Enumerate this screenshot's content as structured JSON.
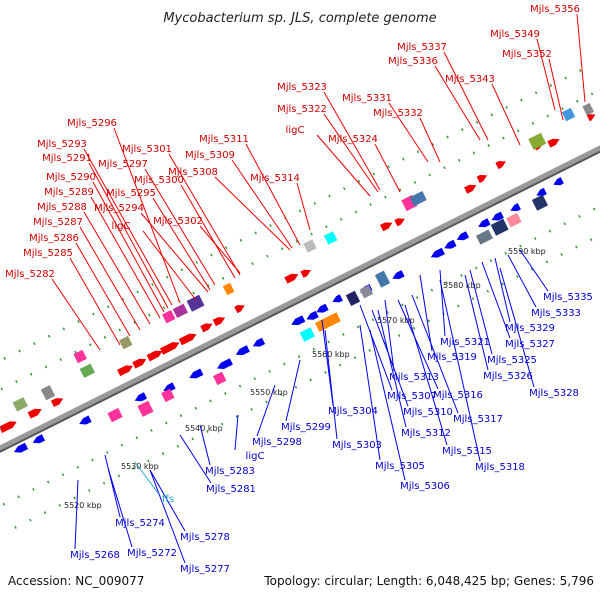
{
  "title": "Mycobacterium sp. JLS, complete genome",
  "footer": {
    "accession": "Accession: NC_009077",
    "summary": "Topology: circular; Length: 6,048,425 bp; Genes: 5,796"
  },
  "colors": {
    "forward_gene": "#ee0000",
    "reverse_gene": "#0000ee",
    "rna_gene": "#22aacc",
    "backbone": "#999999"
  },
  "ticks": [
    "5520 kbp",
    "5530 kbp",
    "5540 kbp",
    "5550 kbp",
    "5560 kbp",
    "5570 kbp",
    "5580 kbp",
    "5590 kbp"
  ],
  "top_labels": [
    "Mjls_5356",
    "Mjls_5349",
    "Mjls_5352",
    "Mjls_5337",
    "Mjls_5336",
    "Mjls_5343",
    "Mjls_5323",
    "Mjls_5322",
    "Mjls_5331",
    "Mjls_5332",
    "ligC",
    "Mjls_5324",
    "Mjls_5311",
    "Mjls_5309",
    "Mjls_5308",
    "Mjls_5314",
    "Mjls_5296",
    "Mjls_5293",
    "Mjls_5301",
    "Mjls_5291",
    "Mjls_5297",
    "Mjls_5290",
    "Mjls_5300",
    "Mjls_5289",
    "Mjls_5295",
    "Mjls_5288",
    "Mjls_5294",
    "Mjls_5287",
    "ligC",
    "Mjls_5302",
    "Mjls_5286",
    "Mjls_5285",
    "Mjls_5282"
  ],
  "bottom_labels": [
    "Mjls_5335",
    "Mjls_5333",
    "Mjls_5329",
    "Mjls_5327",
    "Mjls_5321",
    "Mjls_5325",
    "Mjls_5319",
    "Mjls_5326",
    "Mjls_5328",
    "Mjls_5313",
    "Mjls_5316",
    "Mjls_5307",
    "Mjls_5304",
    "Mjls_5310",
    "Mjls_5317",
    "Mjls_5299",
    "Mjls_5312",
    "Mjls_5303",
    "Mjls_5315",
    "Mjls_5298",
    "Mjls_5318",
    "Mjls_5305",
    "ligC",
    "Mjls_5306",
    "Mjls_5283",
    "Mjls_5281",
    "Mjls_5274",
    "Mjls_5278",
    "Mjls_5272",
    "Mjls_5268",
    "Mjls_5277"
  ],
  "rna_labels": [
    "ffs"
  ]
}
